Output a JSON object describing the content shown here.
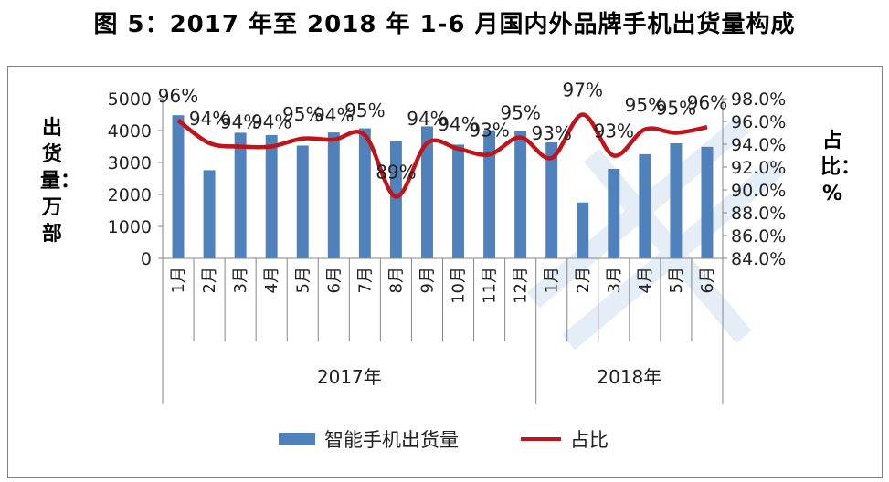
{
  "title": "图 5：2017 年至 2018 年 1-6 月国内外品牌手机出货量构成",
  "y_left_label": "出货量：万部",
  "y_right_label": "占比：%",
  "colors": {
    "bar": "#4f81bd",
    "line": "#c0141b"
  },
  "chart_data": {
    "type": "bar",
    "categories": [
      "1月",
      "2月",
      "3月",
      "4月",
      "5月",
      "6月",
      "7月",
      "8月",
      "9月",
      "10月",
      "11月",
      "12月",
      "1月",
      "2月",
      "3月",
      "4月",
      "5月",
      "6月"
    ],
    "groups": [
      {
        "label": "2017年",
        "start": 0,
        "end": 11
      },
      {
        "label": "2018年",
        "start": 12,
        "end": 17
      }
    ],
    "series": [
      {
        "name": "智能手机出货量",
        "type": "bar",
        "axis": "left",
        "values": [
          4480,
          2760,
          3930,
          3860,
          3530,
          3940,
          4070,
          3670,
          4130,
          3560,
          4010,
          4000,
          3630,
          1750,
          2800,
          3260,
          3600,
          3490
        ]
      },
      {
        "name": "占比",
        "type": "line",
        "axis": "right",
        "values": [
          96.1,
          94.1,
          93.8,
          93.8,
          94.5,
          94.4,
          94.8,
          89.4,
          94.1,
          93.6,
          93.1,
          94.6,
          92.8,
          96.6,
          93.0,
          95.3,
          95.0,
          95.5
        ],
        "labels": [
          "96%",
          "94%",
          "94%",
          "94%",
          "95%",
          "94%",
          "95%",
          "89%",
          "94%",
          "94%",
          "93%",
          "95%",
          "93%",
          "97%",
          "93%",
          "95%",
          "95%",
          "96%"
        ]
      }
    ],
    "y_left": {
      "min": 0,
      "max": 5000,
      "step": 1000,
      "ticks": [
        "0",
        "1000",
        "2000",
        "3000",
        "4000",
        "5000"
      ]
    },
    "y_right": {
      "min": 84.0,
      "max": 98.0,
      "step": 2.0,
      "ticks": [
        "84.0%",
        "86.0%",
        "88.0%",
        "90.0%",
        "92.0%",
        "94.0%",
        "96.0%",
        "98.0%"
      ]
    },
    "grid": false,
    "legend_position": "bottom"
  }
}
